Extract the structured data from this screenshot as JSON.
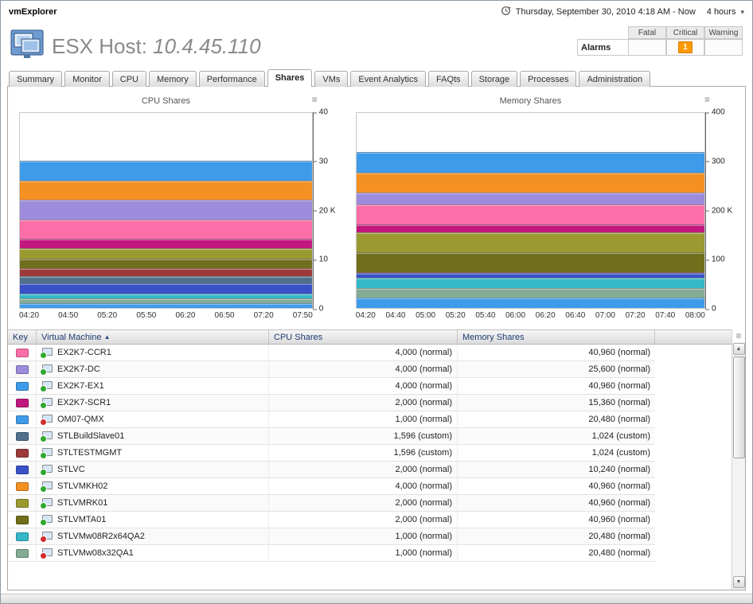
{
  "app": {
    "title": "vmExplorer"
  },
  "timebar": {
    "range": "Thursday, September 30, 2010 4:18 AM - Now",
    "duration": "4 hours"
  },
  "header": {
    "title": "ESX Host:",
    "host": "10.4.45.110"
  },
  "alarms": {
    "label": "Alarms",
    "columns": {
      "fatal": "Fatal",
      "critical": "Critical",
      "warning": "Warning"
    },
    "counts": {
      "fatal": "",
      "critical": "1",
      "warning": ""
    },
    "critical_color": "#FF9A00"
  },
  "tabs": {
    "items": [
      "Summary",
      "Monitor",
      "CPU",
      "Memory",
      "Performance",
      "Shares",
      "VMs",
      "Event Analytics",
      "FAQts",
      "Storage",
      "Processes",
      "Administration"
    ],
    "active": "Shares"
  },
  "table": {
    "columns": {
      "key": "Key",
      "vm": "Virtual Machine",
      "cpu": "CPU Shares",
      "memory": "Memory Shares"
    },
    "sort": {
      "column": "Virtual Machine",
      "direction": "asc",
      "arrow": "▲"
    },
    "rows": [
      {
        "name": "EX2K7-CCR1",
        "color": "#FC6EA8",
        "status": "on",
        "cpu": "4,000 (normal)",
        "memory": "40,960 (normal)"
      },
      {
        "name": "EX2K7-DC",
        "color": "#9D8BDB",
        "status": "on",
        "cpu": "4,000 (normal)",
        "memory": "25,600 (normal)"
      },
      {
        "name": "EX2K7-EX1",
        "color": "#3E9BEA",
        "status": "on",
        "cpu": "4,000 (normal)",
        "memory": "40,960 (normal)"
      },
      {
        "name": "EX2K7-SCR1",
        "color": "#C2187E",
        "status": "on",
        "cpu": "2,000 (normal)",
        "memory": "15,360 (normal)"
      },
      {
        "name": "OM07-QMX",
        "color": "#3E9BEA",
        "status": "off",
        "cpu": "1,000 (normal)",
        "memory": "20,480 (normal)"
      },
      {
        "name": "STLBuildSlave01",
        "color": "#50708C",
        "status": "on",
        "cpu": "1,596 (custom)",
        "memory": "1,024 (custom)"
      },
      {
        "name": "STLTESTMGMT",
        "color": "#9C3A3A",
        "status": "on",
        "cpu": "1,596 (custom)",
        "memory": "1,024 (custom)"
      },
      {
        "name": "STLVC",
        "color": "#3A50C8",
        "status": "on",
        "cpu": "2,000 (normal)",
        "memory": "10,240 (normal)"
      },
      {
        "name": "STLVMKH02",
        "color": "#F59023",
        "status": "on",
        "cpu": "4,000 (normal)",
        "memory": "40,960 (normal)"
      },
      {
        "name": "STLVMRK01",
        "color": "#9A9A30",
        "status": "on",
        "cpu": "2,000 (normal)",
        "memory": "40,960 (normal)"
      },
      {
        "name": "STLVMTA01",
        "color": "#70701C",
        "status": "on",
        "cpu": "2,000 (normal)",
        "memory": "40,960 (normal)"
      },
      {
        "name": "STLVMw08R2x64QA2",
        "color": "#35B8C8",
        "status": "off",
        "cpu": "1,000 (normal)",
        "memory": "20,480 (normal)"
      },
      {
        "name": "STLVMw08x32QA1",
        "color": "#84AC94",
        "status": "off",
        "cpu": "1,000 (normal)",
        "memory": "20,480 (normal)"
      }
    ]
  },
  "chart_data": [
    {
      "type": "area",
      "stacked": true,
      "title": "CPU Shares",
      "x": [
        "04:20",
        "04:50",
        "05:20",
        "05:50",
        "06:20",
        "06:50",
        "07:20",
        "07:50"
      ],
      "ylim": [
        0,
        40000
      ],
      "yticks": [
        "40",
        "30",
        "20 K",
        "10",
        "0"
      ],
      "grid": false,
      "legend": "none",
      "series": [
        {
          "name": "EX2K7-EX1",
          "color": "#3E9BEA",
          "value": 4000
        },
        {
          "name": "STLVMKH02",
          "color": "#F59023",
          "value": 4000
        },
        {
          "name": "EX2K7-DC",
          "color": "#9D8BDB",
          "value": 4000
        },
        {
          "name": "EX2K7-CCR1",
          "color": "#FC6EA8",
          "value": 4000
        },
        {
          "name": "EX2K7-SCR1",
          "color": "#C2187E",
          "value": 2000
        },
        {
          "name": "STLVMRK01",
          "color": "#9A9A30",
          "value": 2000
        },
        {
          "name": "STLVMTA01",
          "color": "#70701C",
          "value": 2000
        },
        {
          "name": "STLTESTMGMT",
          "color": "#9C3A3A",
          "value": 1596
        },
        {
          "name": "STLBuildSlave01",
          "color": "#50708C",
          "value": 1596
        },
        {
          "name": "STLVC",
          "color": "#3A50C8",
          "value": 2000
        },
        {
          "name": "STLVMw08R2x64QA2",
          "color": "#35B8C8",
          "value": 1000
        },
        {
          "name": "STLVMw08x32QA1",
          "color": "#84AC94",
          "value": 1000
        },
        {
          "name": "OM07-QMX",
          "color": "#3E9BEA",
          "value": 1000
        }
      ]
    },
    {
      "type": "area",
      "stacked": true,
      "title": "Memory Shares",
      "x": [
        "04:20",
        "04:40",
        "05:00",
        "05:20",
        "05:40",
        "06:00",
        "06:20",
        "06:40",
        "07:00",
        "07:20",
        "07:40",
        "08:00"
      ],
      "ylim": [
        0,
        400000
      ],
      "yticks": [
        "400",
        "300",
        "200 K",
        "100",
        "0"
      ],
      "grid": false,
      "legend": "none",
      "series": [
        {
          "name": "EX2K7-EX1",
          "color": "#3E9BEA",
          "value": 40960
        },
        {
          "name": "STLVMKH02",
          "color": "#F59023",
          "value": 40960
        },
        {
          "name": "EX2K7-DC",
          "color": "#9D8BDB",
          "value": 25600
        },
        {
          "name": "EX2K7-CCR1",
          "color": "#FC6EA8",
          "value": 40960
        },
        {
          "name": "EX2K7-SCR1",
          "color": "#C2187E",
          "value": 15360
        },
        {
          "name": "STLVMRK01",
          "color": "#9A9A30",
          "value": 40960
        },
        {
          "name": "STLVMTA01",
          "color": "#70701C",
          "value": 40960
        },
        {
          "name": "STLTESTMGMT",
          "color": "#9C3A3A",
          "value": 1024
        },
        {
          "name": "STLBuildSlave01",
          "color": "#50708C",
          "value": 1024
        },
        {
          "name": "STLVC",
          "color": "#3A50C8",
          "value": 10240
        },
        {
          "name": "STLVMw08R2x64QA2",
          "color": "#35B8C8",
          "value": 20480
        },
        {
          "name": "STLVMw08x32QA1",
          "color": "#84AC94",
          "value": 20480
        },
        {
          "name": "OM07-QMX",
          "color": "#3E9BEA",
          "value": 20480
        }
      ]
    }
  ]
}
